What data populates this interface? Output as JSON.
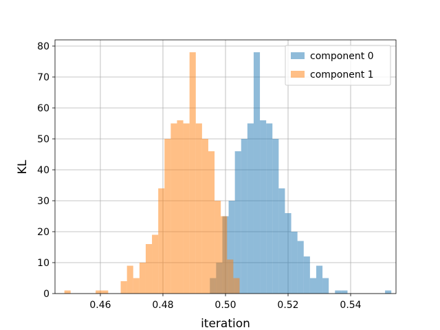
{
  "chart_data": {
    "type": "bar",
    "xlabel": "iteration",
    "ylabel": "KL",
    "xlim": [
      0.4455,
      0.5545
    ],
    "ylim": [
      0,
      82
    ],
    "x_ticks": [
      0.46,
      0.48,
      0.5,
      0.52,
      0.54
    ],
    "x_tick_labels": [
      "0.46",
      "0.48",
      "0.50",
      "0.52",
      "0.54"
    ],
    "y_ticks": [
      0,
      10,
      20,
      30,
      40,
      50,
      60,
      70,
      80
    ],
    "y_tick_labels": [
      "0",
      "10",
      "20",
      "30",
      "40",
      "50",
      "60",
      "70",
      "80"
    ],
    "grid": true,
    "legend_position": "top-right",
    "bin_width": 0.002,
    "series": [
      {
        "name": "component 0",
        "color": "#1f77b4",
        "alpha": 0.5,
        "bins": [
          {
            "x0": 0.495,
            "count": 5
          },
          {
            "x0": 0.497,
            "count": 10
          },
          {
            "x0": 0.499,
            "count": 25
          },
          {
            "x0": 0.501,
            "count": 30
          },
          {
            "x0": 0.503,
            "count": 46
          },
          {
            "x0": 0.505,
            "count": 50
          },
          {
            "x0": 0.507,
            "count": 55
          },
          {
            "x0": 0.509,
            "count": 78
          },
          {
            "x0": 0.511,
            "count": 56
          },
          {
            "x0": 0.513,
            "count": 55
          },
          {
            "x0": 0.515,
            "count": 50
          },
          {
            "x0": 0.517,
            "count": 34
          },
          {
            "x0": 0.519,
            "count": 26
          },
          {
            "x0": 0.521,
            "count": 20
          },
          {
            "x0": 0.523,
            "count": 17
          },
          {
            "x0": 0.525,
            "count": 12
          },
          {
            "x0": 0.527,
            "count": 5
          },
          {
            "x0": 0.529,
            "count": 9
          },
          {
            "x0": 0.531,
            "count": 5
          },
          {
            "x0": 0.535,
            "count": 1
          },
          {
            "x0": 0.537,
            "count": 1
          },
          {
            "x0": 0.551,
            "count": 1
          }
        ]
      },
      {
        "name": "component 1",
        "color": "#ff7f0e",
        "alpha": 0.5,
        "bins": [
          {
            "x0": 0.4485,
            "count": 1
          },
          {
            "x0": 0.4585,
            "count": 1
          },
          {
            "x0": 0.4605,
            "count": 1
          },
          {
            "x0": 0.4665,
            "count": 4
          },
          {
            "x0": 0.4685,
            "count": 9
          },
          {
            "x0": 0.4705,
            "count": 5
          },
          {
            "x0": 0.4725,
            "count": 10
          },
          {
            "x0": 0.4745,
            "count": 16
          },
          {
            "x0": 0.4765,
            "count": 19
          },
          {
            "x0": 0.4785,
            "count": 34
          },
          {
            "x0": 0.4805,
            "count": 50
          },
          {
            "x0": 0.4825,
            "count": 55
          },
          {
            "x0": 0.4845,
            "count": 56
          },
          {
            "x0": 0.4865,
            "count": 55
          },
          {
            "x0": 0.4885,
            "count": 78
          },
          {
            "x0": 0.4905,
            "count": 55
          },
          {
            "x0": 0.4925,
            "count": 50
          },
          {
            "x0": 0.4945,
            "count": 46
          },
          {
            "x0": 0.4965,
            "count": 30
          },
          {
            "x0": 0.4985,
            "count": 25
          },
          {
            "x0": 0.5005,
            "count": 11
          },
          {
            "x0": 0.5025,
            "count": 5
          }
        ]
      }
    ]
  }
}
